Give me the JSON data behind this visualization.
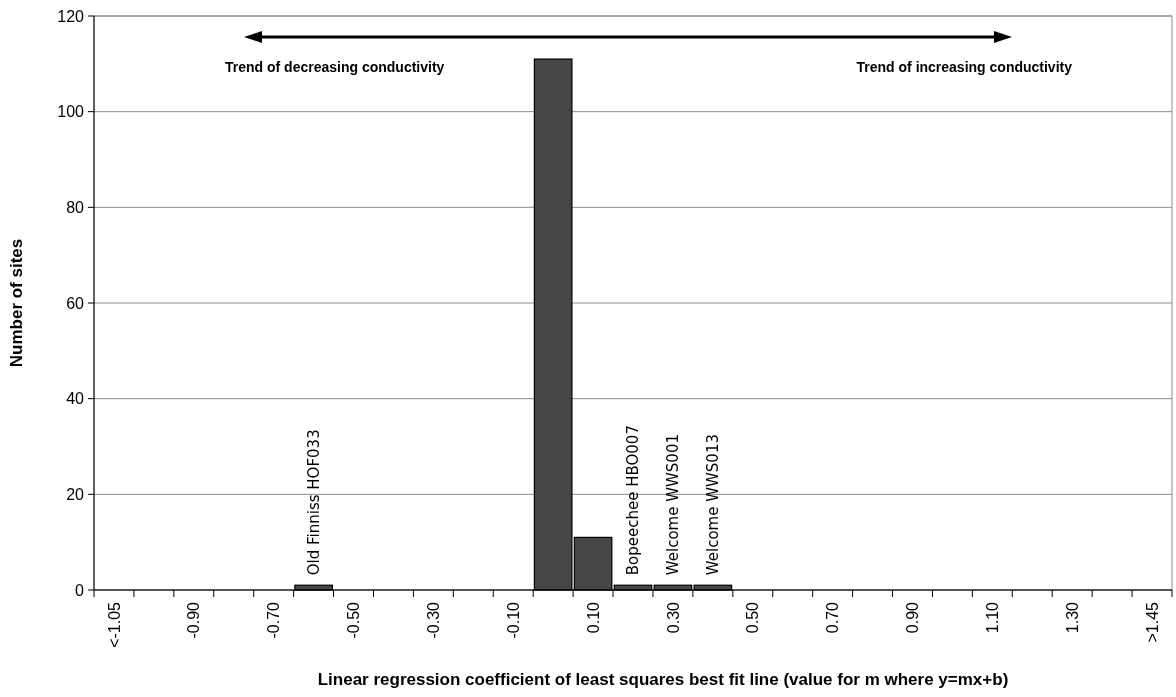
{
  "chart_data": {
    "type": "bar",
    "xlabel": "Linear regression coefficient of least squares best fit line (value for m where y=mx+b)",
    "ylabel": "Number of sites",
    "categories": [
      "<-1.05",
      null,
      "-0.90",
      null,
      "-0.70",
      null,
      "-0.50",
      null,
      "-0.30",
      null,
      "-0.10",
      null,
      "0.10",
      null,
      "0.30",
      null,
      "0.50",
      null,
      "0.70",
      null,
      "0.90",
      null,
      "1.10",
      null,
      "1.30",
      null,
      ">1.45"
    ],
    "values": [
      0,
      0,
      0,
      0,
      0,
      1,
      0,
      0,
      0,
      0,
      0,
      111,
      11,
      1,
      1,
      1,
      0,
      0,
      0,
      0,
      0,
      0,
      0,
      0,
      0,
      0,
      0
    ],
    "value_labels": [
      null,
      null,
      null,
      null,
      null,
      "Old Finniss HOF033",
      null,
      null,
      null,
      null,
      null,
      null,
      null,
      "Bopeechee HBO007",
      "Welcome WWS001",
      "Welcome WWS013",
      null,
      null,
      null,
      null,
      null,
      null,
      null,
      null,
      null,
      null,
      null
    ],
    "color": "#454745",
    "ylim": [
      0,
      120
    ],
    "yticks": [
      0,
      20,
      40,
      60,
      80,
      100,
      120
    ],
    "grid": "y",
    "annotations": [
      "Trend of decreasing conductivity",
      "Trend of increasing conductivity"
    ]
  }
}
